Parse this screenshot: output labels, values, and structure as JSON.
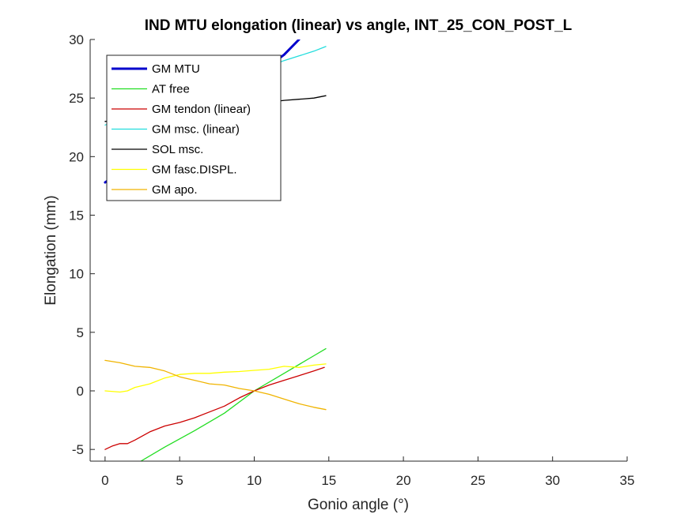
{
  "chart_data": {
    "type": "line",
    "title": "IND MTU elongation (linear) vs angle, INT_25_CON_POST_L",
    "xlabel": "Gonio angle (°)",
    "ylabel": "Elongation (mm)",
    "xlim": [
      -1,
      35
    ],
    "ylim": [
      -6,
      30
    ],
    "xticks": [
      0,
      5,
      10,
      15,
      20,
      25,
      30,
      35
    ],
    "yticks": [
      -5,
      0,
      5,
      10,
      15,
      20,
      25,
      30
    ],
    "grid": false,
    "legend_position": "top-left",
    "series": [
      {
        "name": "GM MTU",
        "color": "#0000cc",
        "width": 3,
        "x": [
          0,
          2,
          4,
          6,
          8,
          10,
          12,
          13
        ],
        "y": [
          17.8,
          19.5,
          21.4,
          23.3,
          25.0,
          26.8,
          28.7,
          30.0
        ]
      },
      {
        "name": "AT free",
        "color": "#22dd22",
        "width": 1.3,
        "x": [
          2.4,
          4,
          6,
          8,
          10,
          12,
          14,
          14.8
        ],
        "y": [
          -6,
          -4.8,
          -3.4,
          -1.9,
          0,
          1.5,
          3.0,
          3.6
        ]
      },
      {
        "name": "GM tendon (linear)",
        "color": "#cc0000",
        "width": 1.3,
        "x": [
          0,
          0.5,
          1,
          1.5,
          2,
          3,
          4,
          5,
          6,
          7,
          8,
          9,
          10,
          11,
          12,
          13,
          14,
          14.7
        ],
        "y": [
          -5,
          -4.7,
          -4.5,
          -4.5,
          -4.2,
          -3.5,
          -3.0,
          -2.7,
          -2.3,
          -1.8,
          -1.3,
          -0.6,
          0,
          0.5,
          0.9,
          1.3,
          1.7,
          2.0
        ]
      },
      {
        "name": "GM msc. (linear)",
        "color": "#22dddd",
        "width": 1.3,
        "x": [
          0,
          2,
          4,
          6,
          8,
          10,
          12,
          13,
          14,
          14.8
        ],
        "y": [
          22.7,
          23.6,
          24.5,
          25.4,
          26.3,
          27.2,
          28.2,
          28.6,
          29.0,
          29.4
        ]
      },
      {
        "name": "SOL msc.",
        "color": "#000000",
        "width": 1.3,
        "x": [
          0,
          2,
          4,
          6,
          8,
          10,
          12,
          13,
          14,
          14.8
        ],
        "y": [
          23.0,
          23.4,
          23.7,
          24.0,
          24.3,
          24.5,
          24.8,
          24.9,
          25.0,
          25.2
        ]
      },
      {
        "name": "GM fasc.DISPL.",
        "color": "#ffff00",
        "width": 1.3,
        "x": [
          0,
          1,
          1.5,
          2,
          3,
          4,
          5,
          6,
          7,
          8,
          9,
          10,
          11,
          12,
          13,
          14,
          14.8
        ],
        "y": [
          0,
          -0.1,
          0,
          0.3,
          0.6,
          1.1,
          1.4,
          1.5,
          1.5,
          1.6,
          1.65,
          1.75,
          1.85,
          2.1,
          2.0,
          2.2,
          2.3
        ]
      },
      {
        "name": "GM apo.",
        "color": "#f0b400",
        "width": 1.3,
        "x": [
          0,
          1,
          2,
          3,
          4,
          5,
          6,
          7,
          8,
          9,
          10,
          11,
          12,
          13,
          14,
          14.8
        ],
        "y": [
          2.6,
          2.4,
          2.1,
          2.0,
          1.7,
          1.2,
          0.9,
          0.6,
          0.5,
          0.2,
          0,
          -0.3,
          -0.7,
          -1.1,
          -1.4,
          -1.6
        ]
      }
    ]
  }
}
